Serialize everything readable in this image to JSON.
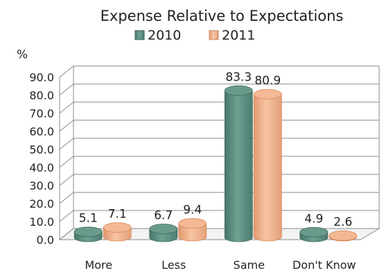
{
  "chart_data": {
    "type": "bar",
    "title": "Expense Relative to Expectations",
    "ylabel": "%",
    "categories": [
      "More",
      "Less",
      "Same",
      "Don't Know"
    ],
    "series": [
      {
        "name": "2010",
        "values": [
          5.1,
          6.7,
          83.3,
          4.9
        ]
      },
      {
        "name": "2011",
        "values": [
          7.1,
          9.4,
          80.9,
          2.6
        ]
      }
    ],
    "ylim": [
      0,
      90
    ],
    "yticks": [
      "0.0",
      "10.0",
      "20.0",
      "30.0",
      "40.0",
      "50.0",
      "60.0",
      "70.0",
      "80.0",
      "90.0"
    ],
    "grid": true,
    "legend_position": "top",
    "colors": {
      "series_2010": "#5e8f80",
      "series_2011": "#f1ad86",
      "grid": "#8a8a8a"
    }
  }
}
